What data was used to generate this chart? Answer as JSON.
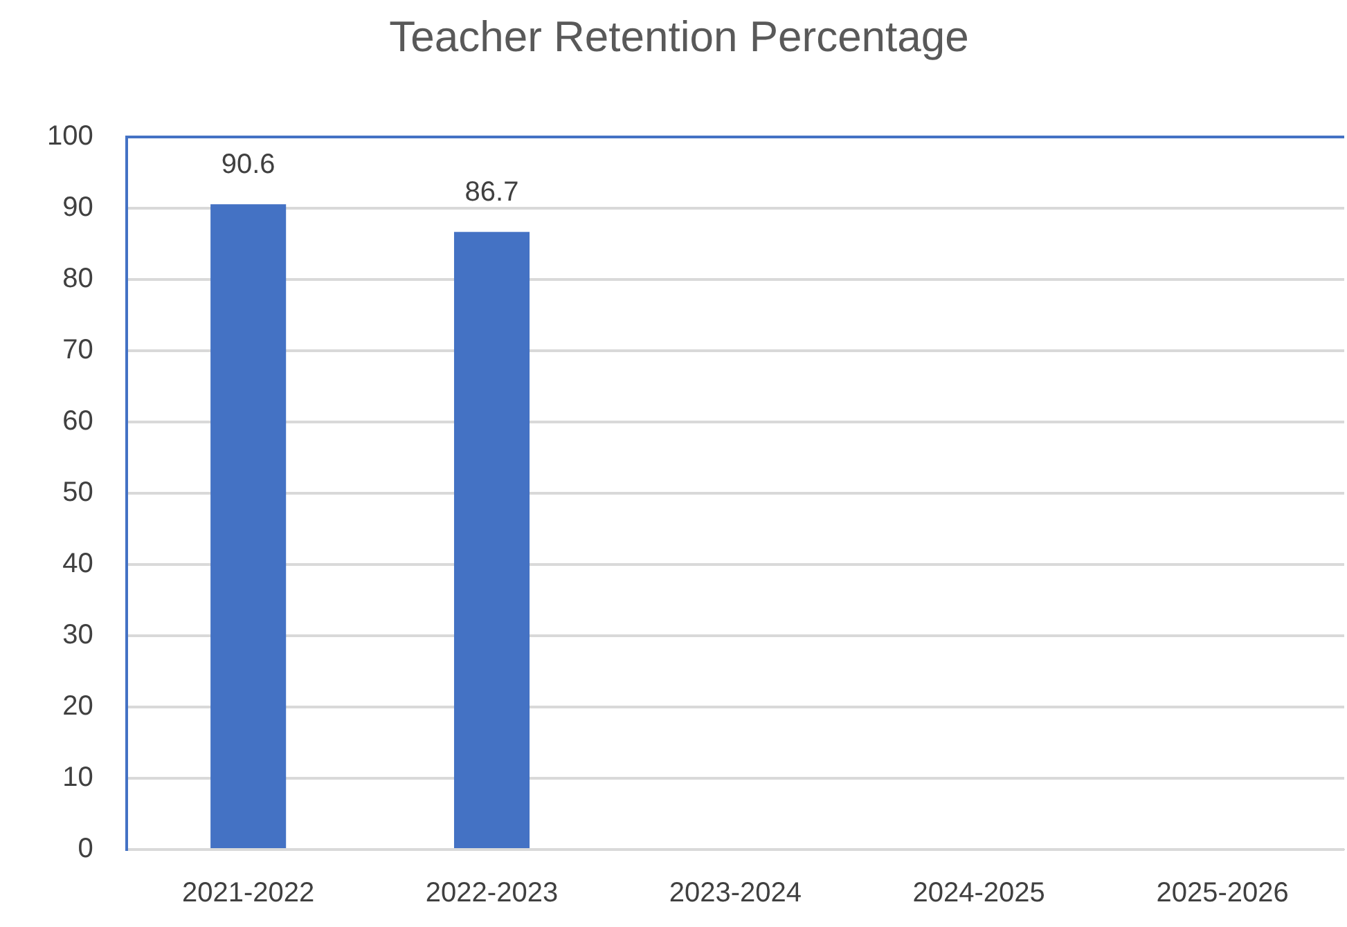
{
  "chart_data": {
    "type": "bar",
    "title": "Teacher Retention Percentage",
    "categories": [
      "2021-2022",
      "2022-2023",
      "2023-2024",
      "2024-2025",
      "2025-2026"
    ],
    "values": [
      90.6,
      86.7,
      null,
      null,
      null
    ],
    "color": "#4472c4",
    "ylim": [
      0,
      100
    ],
    "yticks": [
      0,
      10,
      20,
      30,
      40,
      50,
      60,
      70,
      80,
      90,
      100
    ],
    "grid": "y",
    "data_labels": true,
    "legend": false
  }
}
